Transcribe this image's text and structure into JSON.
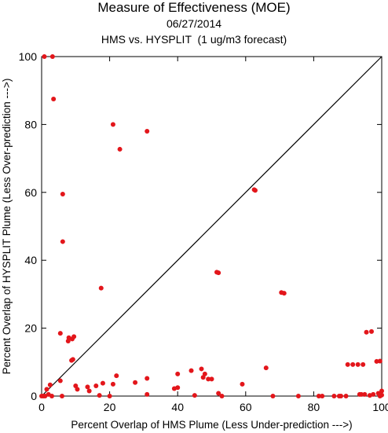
{
  "title": "Measure of Effectiveness (MOE)",
  "date": "06/27/2014",
  "subtitle": "HMS vs. HYSPLIT  (1 ug/m3 forecast)",
  "colors": {
    "points": "#e3161b",
    "axes": "#000000",
    "diagonal": "#000000"
  },
  "chart_data": {
    "type": "scatter",
    "title": "Measure of Effectiveness (MOE)",
    "xlabel": "Percent Overlap of HMS Plume (Less Under-prediction --->)",
    "ylabel": "Percent Overlap of HYSPLIT Plume (Less Over-prediction --->)",
    "xlim": [
      0,
      100
    ],
    "ylim": [
      0,
      100
    ],
    "xticks": [
      "0",
      "20",
      "40",
      "60",
      "80",
      "100"
    ],
    "yticks": [
      "0",
      "20",
      "40",
      "60",
      "80",
      "100"
    ],
    "grid": false,
    "reference_line": "y = x",
    "series": [
      {
        "x": [
          0.8,
          3.2,
          3.5,
          21,
          31,
          23,
          6.2,
          6.2,
          62.5,
          62.8,
          17.5,
          51.5,
          52,
          70.5,
          71.3,
          5.5,
          9,
          9.5,
          8.8,
          9.2,
          8,
          7.8,
          97,
          95.5,
          98.5,
          99.5,
          66,
          90,
          91.5,
          93,
          94.5,
          52,
          47,
          44,
          40,
          48,
          47.5,
          49,
          50,
          59,
          39,
          40,
          31,
          27.5,
          21,
          22,
          16,
          18,
          14,
          13.5,
          10,
          10.5,
          5.5,
          2.5,
          1.5,
          1,
          2,
          3,
          0.5,
          0,
          6,
          20,
          31,
          45,
          53,
          68,
          75.5,
          81.5,
          82.5,
          86,
          87.5,
          88,
          89.5,
          93.5,
          94,
          95,
          96.5,
          97.5,
          99,
          100,
          100,
          99.5,
          17
        ],
        "y": [
          100,
          100,
          87.5,
          80,
          78,
          72.7,
          59.5,
          45.5,
          60.8,
          60.6,
          31.8,
          36.5,
          36.3,
          30.5,
          30.3,
          18.5,
          16.8,
          17.5,
          10.5,
          10.8,
          17.2,
          16.2,
          19,
          18.8,
          10.2,
          10.3,
          8.3,
          9.3,
          9.3,
          9.3,
          9.3,
          0.8,
          8,
          7.5,
          6.5,
          6.5,
          5.5,
          5,
          5,
          3.5,
          2.2,
          2.5,
          5.2,
          4,
          3.5,
          6,
          3,
          3.8,
          1.5,
          2.7,
          3,
          2,
          4.5,
          3.3,
          2,
          0,
          0.5,
          0,
          0,
          0,
          0,
          0,
          0.5,
          0.2,
          0,
          0,
          0,
          0,
          0,
          0,
          0,
          0,
          0,
          0.5,
          0.5,
          0.5,
          0.2,
          0.5,
          0.8,
          1.5,
          0.3,
          0,
          0.2
        ]
      }
    ]
  }
}
